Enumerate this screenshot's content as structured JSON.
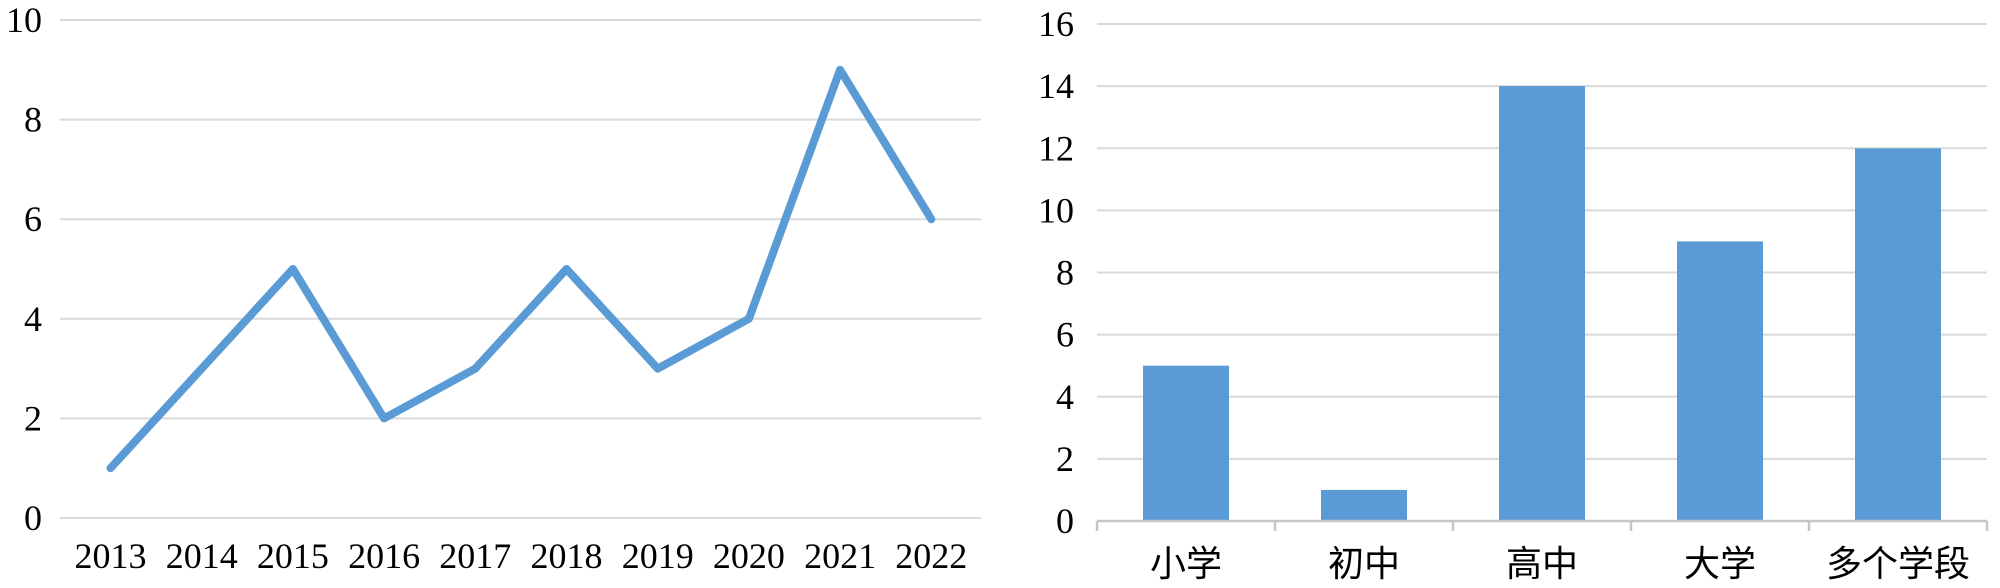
{
  "page": {
    "background_color": "#ffffff",
    "text_color": "#000000"
  },
  "chart_data": [
    {
      "id": "line_chart",
      "type": "line",
      "title": "",
      "xlabel": "",
      "ylabel": "",
      "categories": [
        "2013",
        "2014",
        "2015",
        "2016",
        "2017",
        "2018",
        "2019",
        "2020",
        "2021",
        "2022"
      ],
      "values": [
        1,
        3,
        5,
        2,
        3,
        5,
        3,
        4,
        9,
        6
      ],
      "ylim": [
        0,
        10
      ],
      "ytick_step": 2,
      "yticks": [
        0,
        2,
        4,
        6,
        8,
        10
      ],
      "grid": true,
      "legend": "none",
      "markers": "none",
      "line_color": "#5B9BD5",
      "gridline_color": "#D9D9D9",
      "tick_label_color": "#000000"
    },
    {
      "id": "bar_chart",
      "type": "bar",
      "title": "",
      "xlabel": "",
      "ylabel": "",
      "categories": [
        "小学",
        "初中",
        "高中",
        "大学",
        "多个学段"
      ],
      "values": [
        5,
        1,
        14,
        9,
        12
      ],
      "ylim": [
        0,
        16
      ],
      "ytick_step": 2,
      "yticks": [
        0,
        2,
        4,
        6,
        8,
        10,
        12,
        14,
        16
      ],
      "grid": true,
      "legend": "none",
      "bar_color": "#5B9BD5",
      "gridline_color": "#D9D9D9",
      "axis_line_color": "#C6C6C6",
      "tick_label_color": "#000000"
    }
  ]
}
